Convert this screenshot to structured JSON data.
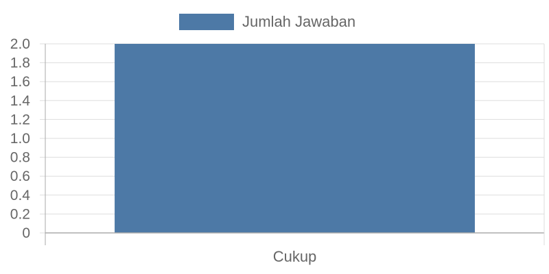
{
  "chart_data": {
    "type": "bar",
    "categories": [
      "Cukup"
    ],
    "series": [
      {
        "name": "Jumlah Jawaban",
        "values": [
          2
        ]
      }
    ],
    "ylim": [
      0,
      2.0
    ],
    "yticks": [
      "0",
      "0.2",
      "0.4",
      "0.6",
      "0.8",
      "1.0",
      "1.2",
      "1.4",
      "1.6",
      "1.8",
      "2.0"
    ],
    "ytick_values": [
      0,
      0.2,
      0.4,
      0.6,
      0.8,
      1.0,
      1.2,
      1.4,
      1.6,
      1.8,
      2.0
    ],
    "grid": true,
    "legend_position": "top-center",
    "colors": {
      "bar": "#4d79a6",
      "grid": "#dddddd",
      "axis": "#aaaaaa",
      "text": "#666666"
    }
  }
}
